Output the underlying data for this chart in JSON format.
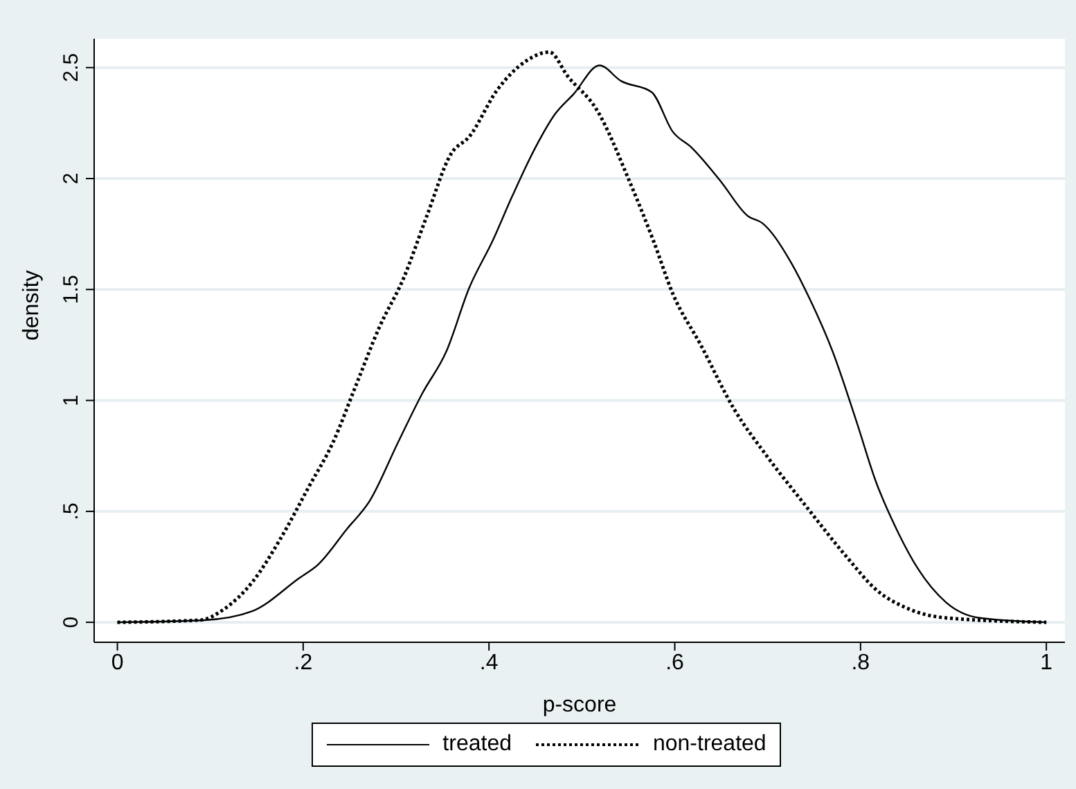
{
  "chart_data": {
    "type": "line",
    "xlabel": "p-score",
    "ylabel": "density",
    "xlim": [
      -0.025,
      1.02
    ],
    "xticks": [
      {
        "value": 0,
        "label": "0"
      },
      {
        "value": 0.2,
        "label": ".2"
      },
      {
        "value": 0.4,
        "label": ".4"
      },
      {
        "value": 0.6,
        "label": ".6"
      },
      {
        "value": 0.8,
        "label": ".8"
      },
      {
        "value": 1,
        "label": "1"
      }
    ],
    "ylim": [
      -0.09,
      2.63
    ],
    "yticks": [
      {
        "value": 0,
        "label": "0"
      },
      {
        "value": 0.5,
        "label": ".5"
      },
      {
        "value": 1,
        "label": "1"
      },
      {
        "value": 1.5,
        "label": "1.5"
      },
      {
        "value": 2,
        "label": "2"
      },
      {
        "value": 2.5,
        "label": "2.5"
      }
    ],
    "grid": "y",
    "legend": "bottom",
    "marker": "none",
    "series": [
      {
        "name": "treated",
        "color": "#000000",
        "line_style": "solid",
        "x": [
          0,
          0.094,
          0.145,
          0.196,
          0.216,
          0.247,
          0.272,
          0.302,
          0.328,
          0.354,
          0.379,
          0.404,
          0.425,
          0.45,
          0.471,
          0.491,
          0.519,
          0.542,
          0.575,
          0.598,
          0.618,
          0.649,
          0.679,
          0.694,
          0.724,
          0.745,
          0.77,
          0.796,
          0.816,
          0.841,
          0.862,
          0.892,
          0.928,
          1
        ],
        "values": [
          0,
          0.01,
          0.05,
          0.2,
          0.26,
          0.42,
          0.55,
          0.81,
          1.03,
          1.22,
          1.51,
          1.72,
          1.92,
          2.14,
          2.29,
          2.38,
          2.51,
          2.44,
          2.39,
          2.21,
          2.14,
          1.99,
          1.83,
          1.8,
          1.63,
          1.46,
          1.22,
          0.9,
          0.64,
          0.4,
          0.24,
          0.09,
          0.02,
          0
        ]
      },
      {
        "name": "non-treated",
        "color": "#000000",
        "line_style": "dotted",
        "x": [
          0,
          0.089,
          0.115,
          0.145,
          0.176,
          0.206,
          0.232,
          0.257,
          0.282,
          0.308,
          0.333,
          0.359,
          0.379,
          0.409,
          0.44,
          0.465,
          0.485,
          0.516,
          0.552,
          0.577,
          0.598,
          0.628,
          0.664,
          0.699,
          0.74,
          0.786,
          0.816,
          0.852,
          0.892,
          1
        ],
        "values": [
          0,
          0.01,
          0.06,
          0.18,
          0.38,
          0.61,
          0.81,
          1.07,
          1.33,
          1.55,
          1.83,
          2.11,
          2.19,
          2.4,
          2.53,
          2.57,
          2.46,
          2.31,
          1.98,
          1.72,
          1.48,
          1.25,
          0.96,
          0.75,
          0.53,
          0.29,
          0.15,
          0.06,
          0.02,
          0
        ]
      }
    ]
  }
}
